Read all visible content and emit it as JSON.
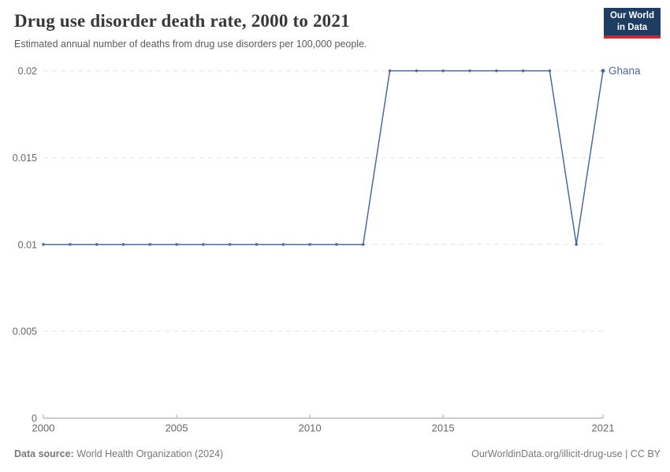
{
  "header": {
    "title": "Drug use disorder death rate, 2000 to 2021",
    "subtitle": "Estimated annual number of deaths from drug use disorders per 100,000 people.",
    "logo": {
      "line1": "Our World",
      "line2": "in Data",
      "bg_color": "#1d3d63",
      "bar_color": "#bf2e36"
    }
  },
  "chart_data": {
    "type": "line",
    "title": "Drug use disorder death rate, 2000 to 2021",
    "entity_label": "Ghana",
    "x": [
      2000,
      2001,
      2002,
      2003,
      2004,
      2005,
      2006,
      2007,
      2008,
      2009,
      2010,
      2011,
      2012,
      2013,
      2014,
      2015,
      2016,
      2017,
      2018,
      2019,
      2020,
      2021
    ],
    "series": [
      {
        "name": "Ghana",
        "color": "#4c6a9d",
        "values": [
          0.01,
          0.01,
          0.01,
          0.01,
          0.01,
          0.01,
          0.01,
          0.01,
          0.01,
          0.01,
          0.01,
          0.01,
          0.01,
          0.02,
          0.02,
          0.02,
          0.02,
          0.02,
          0.02,
          0.02,
          0.01,
          0.02
        ]
      }
    ],
    "xlim": [
      2000,
      2021
    ],
    "ylim": [
      0,
      0.02
    ],
    "yticks": [
      {
        "v": 0,
        "label": "0"
      },
      {
        "v": 0.005,
        "label": "0.005"
      },
      {
        "v": 0.01,
        "label": "0.01"
      },
      {
        "v": 0.015,
        "label": "0.015"
      },
      {
        "v": 0.02,
        "label": "0.02"
      }
    ],
    "xticks": [
      {
        "v": 2000,
        "label": "2000"
      },
      {
        "v": 2005,
        "label": "2005"
      },
      {
        "v": 2010,
        "label": "2010"
      },
      {
        "v": 2015,
        "label": "2015"
      },
      {
        "v": 2021,
        "label": "2021"
      }
    ],
    "grid": true,
    "grid_color": "#e2e2e2",
    "axis_color": "#a5a5a5",
    "tick_label_color": "#666666",
    "legend_position": "end-of-line"
  },
  "footer": {
    "source_label": "Data source:",
    "source_value": "World Health Organization (2024)",
    "link": "OurWorldinData.org/illicit-drug-use | CC BY"
  }
}
